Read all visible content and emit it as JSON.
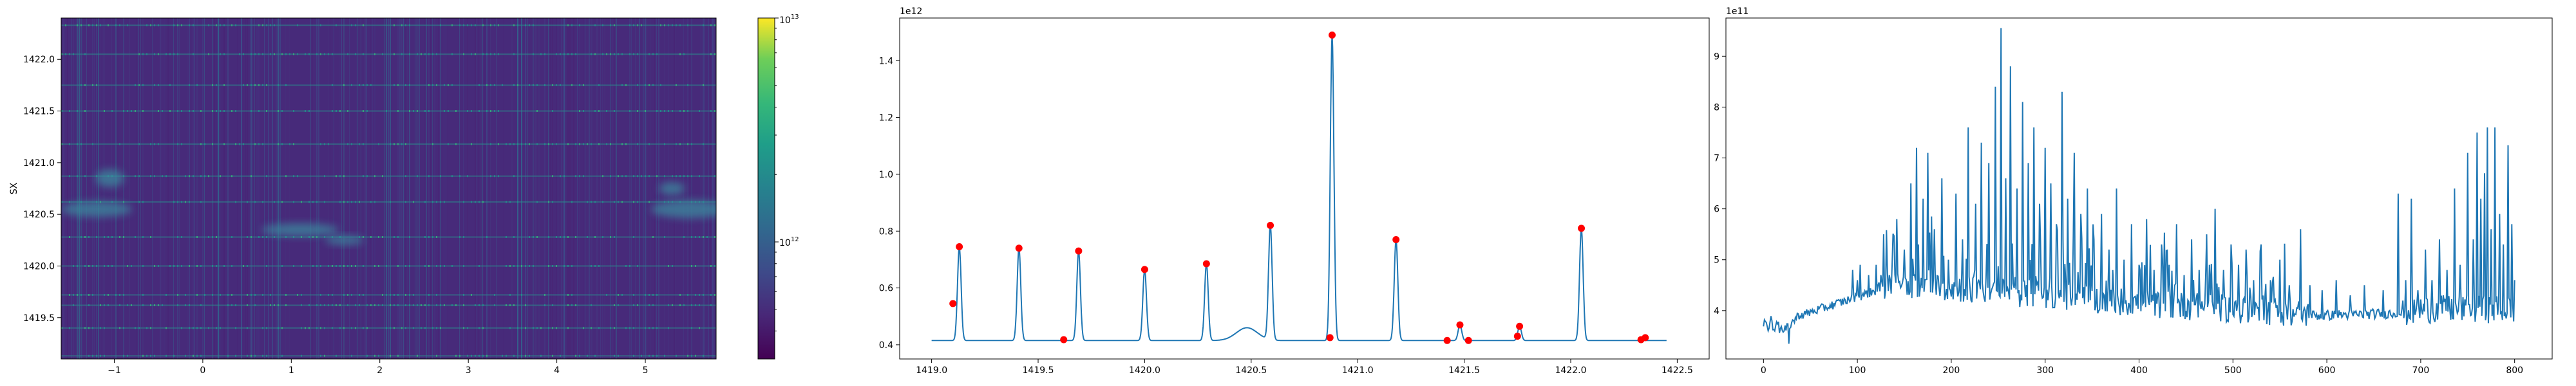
{
  "chart_data": [
    {
      "type": "heatmap",
      "title": "",
      "xlabel": "",
      "ylabel": "SX",
      "xlim": [
        -1.6,
        5.8
      ],
      "ylim": [
        1419.1,
        1422.4
      ],
      "x_ticks": [
        -1,
        0,
        1,
        2,
        3,
        4,
        5
      ],
      "x_tick_labels": [
        "−1",
        "0",
        "1",
        "2",
        "3",
        "4",
        "5"
      ],
      "y_ticks": [
        1419.5,
        1420.0,
        1420.5,
        1421.0,
        1421.5,
        1422.0
      ],
      "y_tick_labels": [
        "1419.5",
        "1420.0",
        "1420.5",
        "1421.0",
        "1421.5",
        "1422.0"
      ],
      "colormap": "viridis",
      "colorbar": {
        "scale": "log",
        "min": 300000000000,
        "max": 10000000000000,
        "tick_values": [
          1000000000000,
          10000000000000
        ],
        "tick_labels": [
          {
            "base": "10",
            "exp": "12"
          },
          {
            "base": "10",
            "exp": "13"
          }
        ]
      },
      "horizontal_bands_y": [
        1419.13,
        1419.4,
        1419.62,
        1419.72,
        1420.0,
        1420.28,
        1420.62,
        1420.87,
        1421.18,
        1421.5,
        1421.75,
        1422.05,
        1422.33
      ]
    },
    {
      "type": "line",
      "title": "",
      "xlabel": "",
      "ylabel": "",
      "offset_label": "1e12",
      "xlim": [
        1418.85,
        1422.65
      ],
      "ylim": [
        0.35,
        1.55
      ],
      "x_ticks": [
        1419.0,
        1419.5,
        1420.0,
        1420.5,
        1421.0,
        1421.5,
        1422.0,
        1422.5
      ],
      "x_tick_labels": [
        "1419.0",
        "1419.5",
        "1420.0",
        "1420.5",
        "1421.0",
        "1421.5",
        "1422.0",
        "1422.5"
      ],
      "y_ticks": [
        0.4,
        0.6,
        0.8,
        1.0,
        1.2,
        1.4
      ],
      "y_tick_labels": [
        "0.4",
        "0.6",
        "0.8",
        "1.0",
        "1.2",
        "1.4"
      ],
      "line_color": "#1f77b4",
      "marker_color": "#ff0000",
      "baseline": 0.415,
      "series_x_range": [
        1419.0,
        1422.45
      ],
      "peaks": [
        {
          "x": 1419.13,
          "y": 0.745
        },
        {
          "x": 1419.41,
          "y": 0.74
        },
        {
          "x": 1419.69,
          "y": 0.73
        },
        {
          "x": 1420.0,
          "y": 0.665
        },
        {
          "x": 1420.29,
          "y": 0.685
        },
        {
          "x": 1420.59,
          "y": 0.82
        },
        {
          "x": 1420.88,
          "y": 1.49
        },
        {
          "x": 1421.18,
          "y": 0.77
        },
        {
          "x": 1421.48,
          "y": 0.47
        },
        {
          "x": 1421.76,
          "y": 0.465
        },
        {
          "x": 1422.05,
          "y": 0.81
        }
      ],
      "markers": [
        {
          "x": 1419.1,
          "y": 0.545
        },
        {
          "x": 1419.13,
          "y": 0.745
        },
        {
          "x": 1419.41,
          "y": 0.74
        },
        {
          "x": 1419.62,
          "y": 0.418
        },
        {
          "x": 1419.69,
          "y": 0.73
        },
        {
          "x": 1420.0,
          "y": 0.665
        },
        {
          "x": 1420.29,
          "y": 0.685
        },
        {
          "x": 1420.59,
          "y": 0.82
        },
        {
          "x": 1420.87,
          "y": 0.425
        },
        {
          "x": 1420.88,
          "y": 1.49
        },
        {
          "x": 1421.18,
          "y": 0.77
        },
        {
          "x": 1421.42,
          "y": 0.415
        },
        {
          "x": 1421.48,
          "y": 0.47
        },
        {
          "x": 1421.52,
          "y": 0.415
        },
        {
          "x": 1421.75,
          "y": 0.43
        },
        {
          "x": 1421.76,
          "y": 0.465
        },
        {
          "x": 1422.05,
          "y": 0.81
        },
        {
          "x": 1422.33,
          "y": 0.418
        },
        {
          "x": 1422.35,
          "y": 0.425
        }
      ]
    },
    {
      "type": "line",
      "title": "",
      "xlabel": "",
      "ylabel": "",
      "offset_label": "1e11",
      "xlim": [
        -40,
        840
      ],
      "ylim": [
        3.05,
        9.75
      ],
      "x_ticks": [
        0,
        100,
        200,
        300,
        400,
        500,
        600,
        700,
        800
      ],
      "x_tick_labels": [
        "0",
        "100",
        "200",
        "300",
        "400",
        "500",
        "600",
        "700",
        "800"
      ],
      "y_ticks": [
        4,
        5,
        6,
        7,
        8,
        9
      ],
      "y_tick_labels": [
        "4",
        "5",
        "6",
        "7",
        "8",
        "9"
      ],
      "line_color": "#1f77b4",
      "n_points": 801,
      "spikes": [
        {
          "x": 95,
          "y": 4.8
        },
        {
          "x": 100,
          "y": 4.6
        },
        {
          "x": 103,
          "y": 4.9
        },
        {
          "x": 112,
          "y": 4.7
        },
        {
          "x": 120,
          "y": 4.9
        },
        {
          "x": 128,
          "y": 5.5
        },
        {
          "x": 134,
          "y": 4.7
        },
        {
          "x": 142,
          "y": 5.8
        },
        {
          "x": 150,
          "y": 5.2
        },
        {
          "x": 157,
          "y": 6.5
        },
        {
          "x": 163,
          "y": 7.2
        },
        {
          "x": 170,
          "y": 6.2
        },
        {
          "x": 175,
          "y": 7.1
        },
        {
          "x": 182,
          "y": 5.6
        },
        {
          "x": 190,
          "y": 6.6
        },
        {
          "x": 197,
          "y": 5.0
        },
        {
          "x": 205,
          "y": 6.3
        },
        {
          "x": 212,
          "y": 5.4
        },
        {
          "x": 218,
          "y": 7.6
        },
        {
          "x": 226,
          "y": 6.1
        },
        {
          "x": 232,
          "y": 7.3
        },
        {
          "x": 240,
          "y": 6.9
        },
        {
          "x": 247,
          "y": 8.4
        },
        {
          "x": 253,
          "y": 9.55
        },
        {
          "x": 258,
          "y": 6.6
        },
        {
          "x": 263,
          "y": 8.8
        },
        {
          "x": 270,
          "y": 6.4
        },
        {
          "x": 276,
          "y": 8.1
        },
        {
          "x": 282,
          "y": 6.9
        },
        {
          "x": 288,
          "y": 7.6
        },
        {
          "x": 294,
          "y": 6.1
        },
        {
          "x": 300,
          "y": 7.2
        },
        {
          "x": 306,
          "y": 6.5
        },
        {
          "x": 312,
          "y": 5.7
        },
        {
          "x": 318,
          "y": 8.3
        },
        {
          "x": 324,
          "y": 6.2
        },
        {
          "x": 331,
          "y": 7.1
        },
        {
          "x": 338,
          "y": 5.9
        },
        {
          "x": 345,
          "y": 6.4
        },
        {
          "x": 352,
          "y": 5.4
        },
        {
          "x": 360,
          "y": 5.9
        },
        {
          "x": 368,
          "y": 5.2
        },
        {
          "x": 376,
          "y": 6.4
        },
        {
          "x": 384,
          "y": 5.0
        },
        {
          "x": 392,
          "y": 5.7
        },
        {
          "x": 400,
          "y": 4.9
        },
        {
          "x": 408,
          "y": 5.8
        },
        {
          "x": 416,
          "y": 4.8
        },
        {
          "x": 424,
          "y": 5.3
        },
        {
          "x": 432,
          "y": 4.9
        },
        {
          "x": 440,
          "y": 5.7
        },
        {
          "x": 448,
          "y": 4.7
        },
        {
          "x": 456,
          "y": 5.4
        },
        {
          "x": 464,
          "y": 4.8
        },
        {
          "x": 472,
          "y": 5.5
        },
        {
          "x": 481,
          "y": 6.0
        },
        {
          "x": 490,
          "y": 4.8
        },
        {
          "x": 498,
          "y": 5.3
        },
        {
          "x": 506,
          "y": 4.9
        },
        {
          "x": 514,
          "y": 5.2
        },
        {
          "x": 522,
          "y": 4.6
        },
        {
          "x": 530,
          "y": 5.3
        },
        {
          "x": 540,
          "y": 4.6
        },
        {
          "x": 550,
          "y": 5.0
        },
        {
          "x": 560,
          "y": 4.5
        },
        {
          "x": 572,
          "y": 5.6
        },
        {
          "x": 582,
          "y": 4.5
        },
        {
          "x": 595,
          "y": 4.4
        },
        {
          "x": 610,
          "y": 4.6
        },
        {
          "x": 625,
          "y": 4.3
        },
        {
          "x": 640,
          "y": 4.5
        },
        {
          "x": 660,
          "y": 4.4
        },
        {
          "x": 676,
          "y": 6.3
        },
        {
          "x": 684,
          "y": 4.6
        },
        {
          "x": 690,
          "y": 6.2
        },
        {
          "x": 697,
          "y": 4.4
        },
        {
          "x": 705,
          "y": 5.2
        },
        {
          "x": 712,
          "y": 4.6
        },
        {
          "x": 720,
          "y": 5.4
        },
        {
          "x": 728,
          "y": 4.8
        },
        {
          "x": 736,
          "y": 6.4
        },
        {
          "x": 742,
          "y": 4.9
        },
        {
          "x": 750,
          "y": 7.1
        },
        {
          "x": 756,
          "y": 5.4
        },
        {
          "x": 760,
          "y": 7.5
        },
        {
          "x": 764,
          "y": 6.2
        },
        {
          "x": 768,
          "y": 6.7
        },
        {
          "x": 771,
          "y": 7.6
        },
        {
          "x": 775,
          "y": 5.6
        },
        {
          "x": 779,
          "y": 7.6
        },
        {
          "x": 784,
          "y": 5.9
        },
        {
          "x": 788,
          "y": 5.3
        },
        {
          "x": 793,
          "y": 7.25
        },
        {
          "x": 797,
          "y": 5.7
        },
        {
          "x": 800,
          "y": 4.6
        }
      ]
    }
  ]
}
